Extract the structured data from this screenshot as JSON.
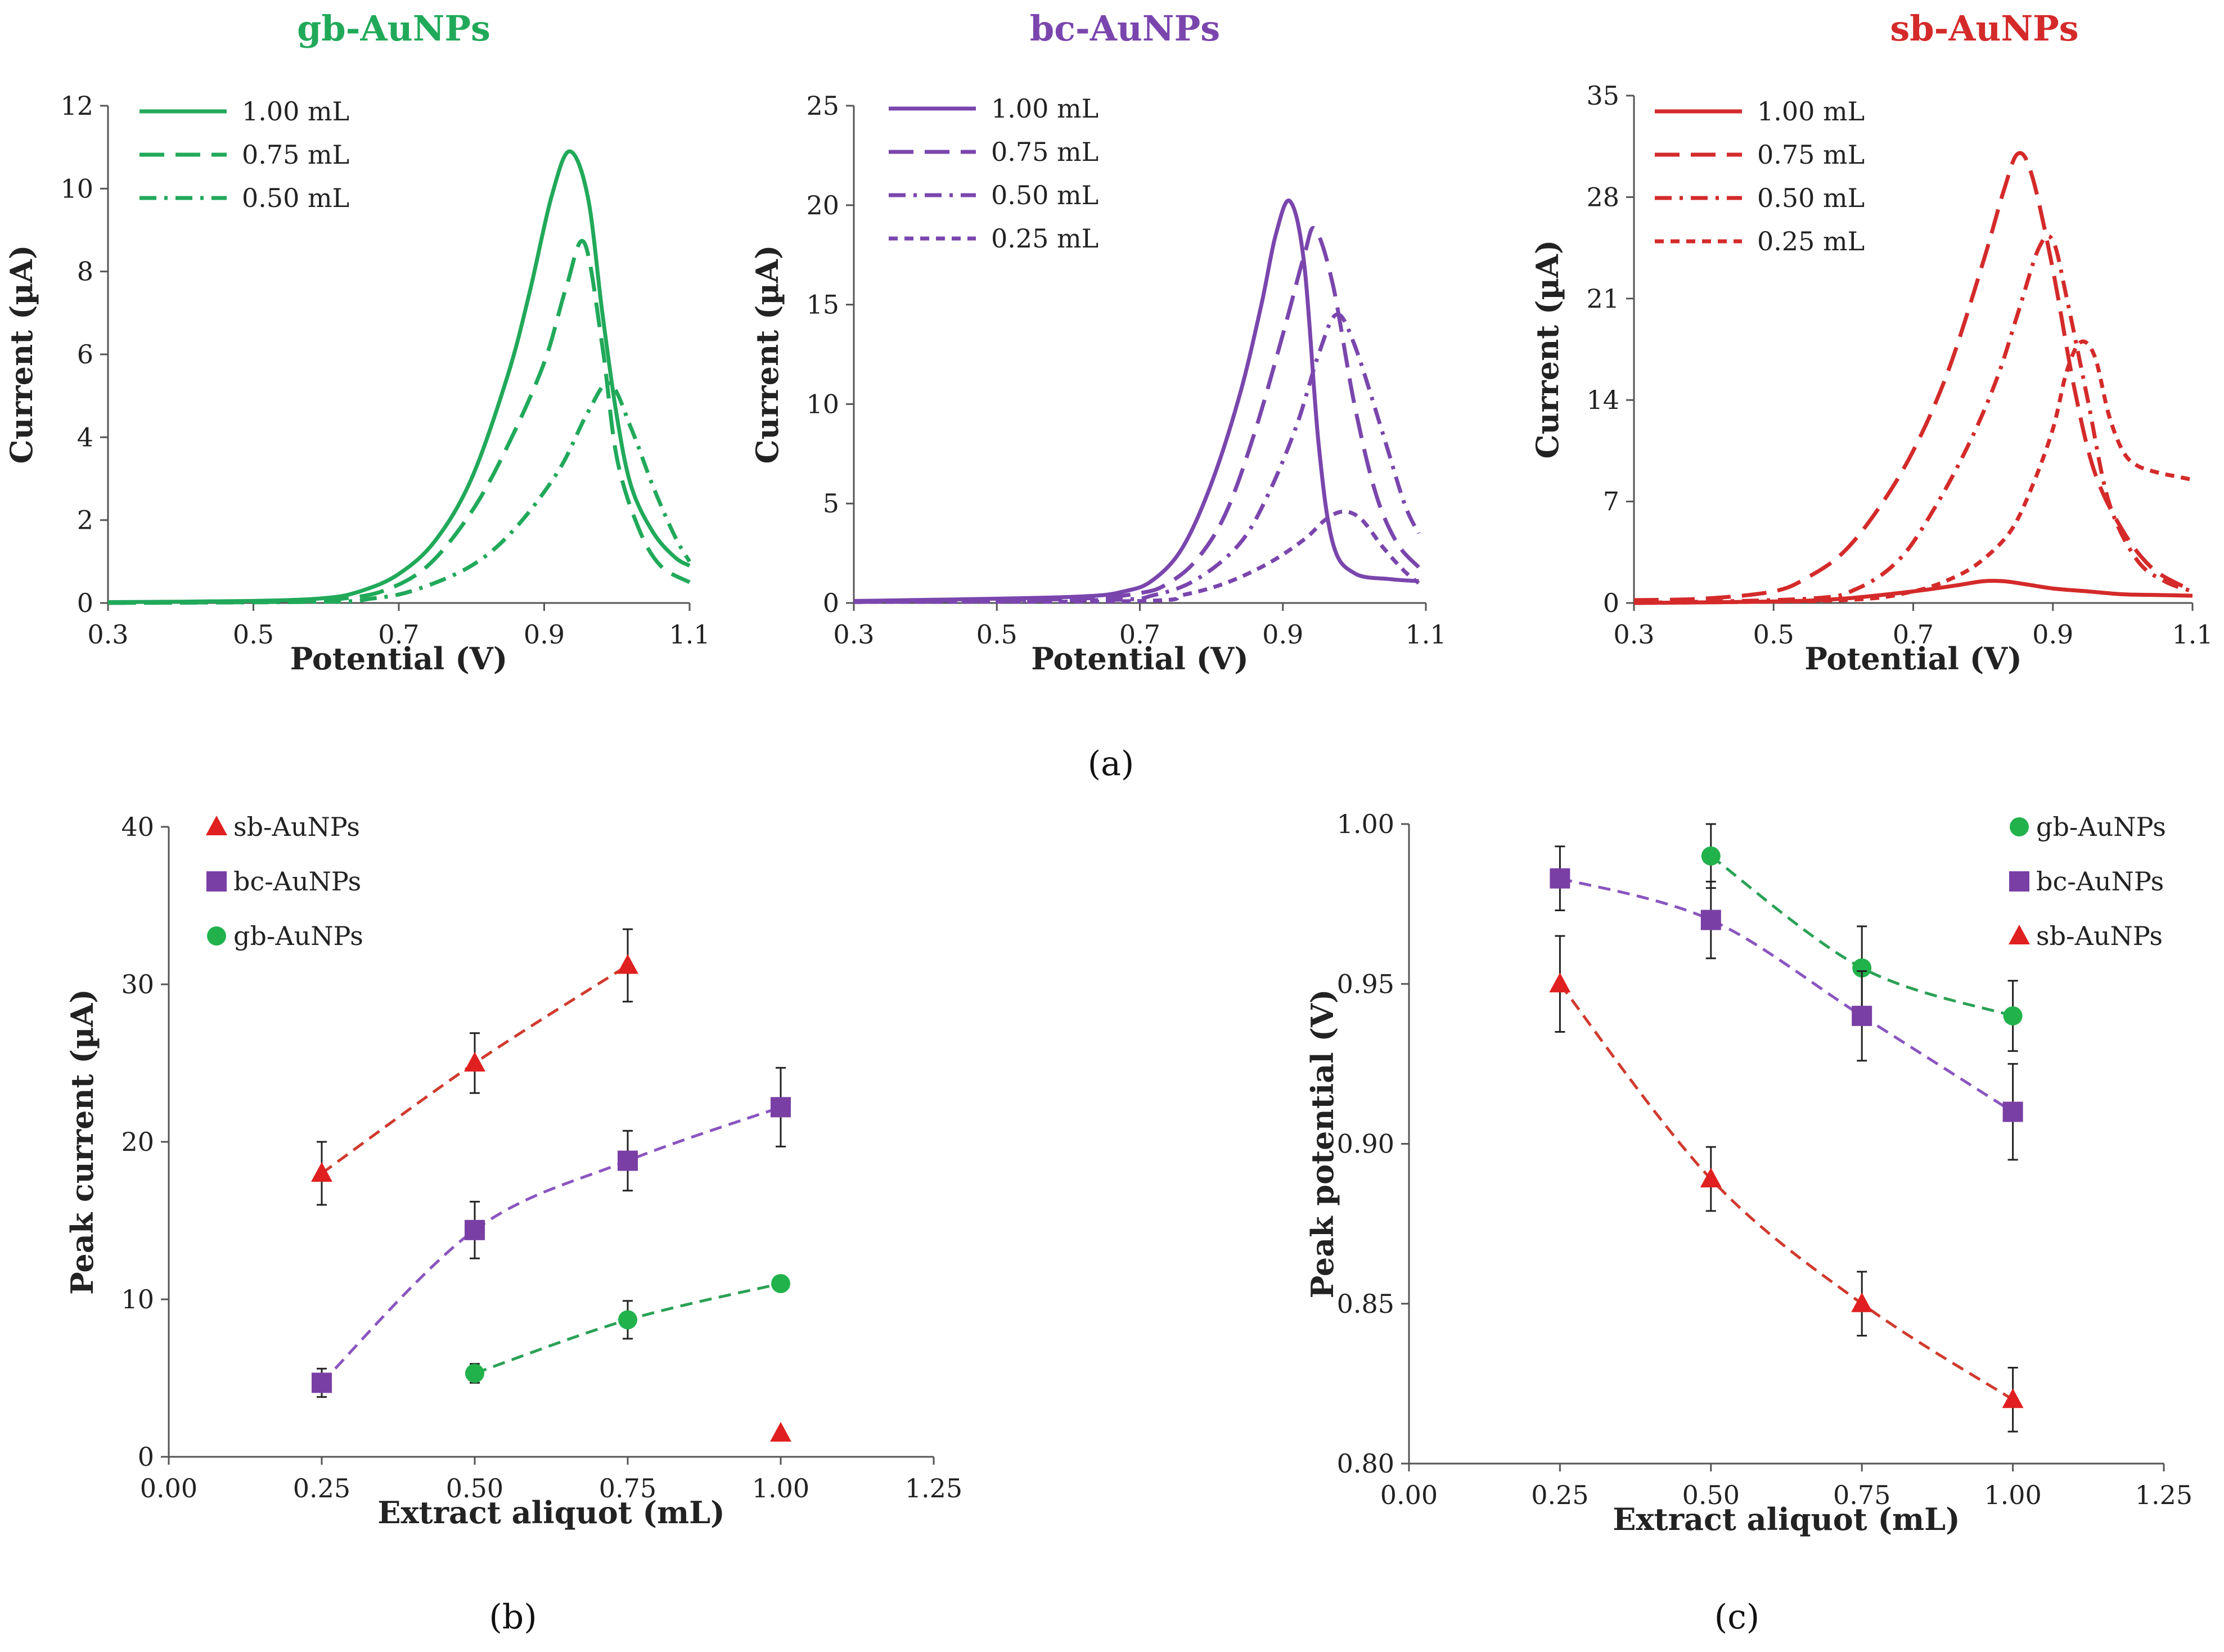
{
  "captions": {
    "a": "(a)",
    "b": "(b)",
    "c": "(c)"
  },
  "chart_data": [
    {
      "id": "a1",
      "type": "line",
      "title": "gb-AuNPs",
      "color": "#21a95a",
      "xlabel": "Potential (V)",
      "ylabel": "Current (µA)",
      "xlim": [
        0.3,
        1.1
      ],
      "ylim": [
        0,
        12
      ],
      "xticks": [
        "0.3",
        "0.5",
        "0.7",
        "0.9",
        "1.1"
      ],
      "yticks": [
        "0",
        "2",
        "4",
        "6",
        "8",
        "10",
        "12"
      ],
      "legend_position": "top-left",
      "series": [
        {
          "name": "1.00 mL",
          "dash": "solid",
          "x": [
            0.3,
            0.5,
            0.6,
            0.65,
            0.7,
            0.75,
            0.8,
            0.85,
            0.88,
            0.91,
            0.935,
            0.96,
            0.98,
            1.0,
            1.02,
            1.05,
            1.08,
            1.1
          ],
          "y": [
            0.02,
            0.05,
            0.12,
            0.3,
            0.7,
            1.5,
            3.0,
            5.5,
            7.5,
            9.8,
            10.9,
            9.8,
            7.0,
            4.5,
            2.8,
            1.7,
            1.1,
            0.9
          ]
        },
        {
          "name": "0.75 mL",
          "dash": "long",
          "x": [
            0.3,
            0.55,
            0.62,
            0.68,
            0.74,
            0.8,
            0.85,
            0.9,
            0.93,
            0.955,
            0.98,
            1.0,
            1.03,
            1.06,
            1.1
          ],
          "y": [
            0,
            0.03,
            0.1,
            0.3,
            0.9,
            2.2,
            3.8,
            5.8,
            7.6,
            8.7,
            6.2,
            3.5,
            1.8,
            0.9,
            0.5
          ]
        },
        {
          "name": "0.50 mL",
          "dash": "dashdot",
          "x": [
            0.3,
            0.6,
            0.66,
            0.72,
            0.8,
            0.86,
            0.92,
            0.96,
            0.99,
            1.02,
            1.05,
            1.08,
            1.1
          ],
          "y": [
            0,
            0.03,
            0.1,
            0.3,
            0.9,
            1.8,
            3.2,
            4.6,
            5.3,
            4.2,
            2.8,
            1.6,
            1.0
          ]
        }
      ]
    },
    {
      "id": "a2",
      "type": "line",
      "title": "bc-AuNPs",
      "color": "#7a46ad",
      "xlabel": "Potential (V)",
      "ylabel": "Current (µA)",
      "xlim": [
        0.3,
        1.1
      ],
      "ylim": [
        0,
        25
      ],
      "xticks": [
        "0.3",
        "0.5",
        "0.7",
        "0.9",
        "1.1"
      ],
      "yticks": [
        "0",
        "5",
        "10",
        "15",
        "20",
        "25"
      ],
      "legend_position": "top-left",
      "series": [
        {
          "name": "1.00 mL",
          "dash": "solid",
          "x": [
            0.3,
            0.6,
            0.68,
            0.72,
            0.76,
            0.8,
            0.84,
            0.87,
            0.89,
            0.91,
            0.93,
            0.95,
            0.97,
            1.0,
            1.05,
            1.09
          ],
          "y": [
            0.1,
            0.3,
            0.6,
            1.2,
            2.8,
            6.0,
            10.5,
            15.0,
            18.5,
            20.2,
            17.0,
            8.0,
            3.0,
            1.5,
            1.2,
            1.1
          ]
        },
        {
          "name": "0.75 mL",
          "dash": "long",
          "x": [
            0.3,
            0.6,
            0.7,
            0.74,
            0.78,
            0.82,
            0.86,
            0.9,
            0.93,
            0.945,
            0.97,
            1.0,
            1.03,
            1.06,
            1.09
          ],
          "y": [
            0.1,
            0.2,
            0.5,
            1.0,
            2.2,
            4.5,
            8.5,
            13.5,
            17.5,
            18.8,
            16.0,
            10.0,
            5.5,
            3.0,
            1.8
          ]
        },
        {
          "name": "0.50 mL",
          "dash": "dashdot",
          "x": [
            0.3,
            0.65,
            0.72,
            0.78,
            0.84,
            0.88,
            0.92,
            0.95,
            0.975,
            1.0,
            1.04,
            1.07,
            1.09
          ],
          "y": [
            0.05,
            0.15,
            0.4,
            1.2,
            3.0,
            5.5,
            9.0,
            12.5,
            14.5,
            13.0,
            8.5,
            5.0,
            3.5
          ]
        },
        {
          "name": "0.25 mL",
          "dash": "short",
          "x": [
            0.3,
            0.7,
            0.76,
            0.82,
            0.88,
            0.93,
            0.96,
            0.985,
            1.01,
            1.04,
            1.07,
            1.09
          ],
          "y": [
            0.05,
            0.1,
            0.4,
            1.0,
            2.0,
            3.2,
            4.2,
            4.6,
            4.2,
            2.8,
            1.6,
            1.0
          ]
        }
      ]
    },
    {
      "id": "a3",
      "type": "line",
      "title": "sb-AuNPs",
      "color": "#d42a2a",
      "xlabel": "Potential (V)",
      "ylabel": "Current (µA)",
      "xlim": [
        0.3,
        1.1
      ],
      "ylim": [
        0,
        35
      ],
      "xticks": [
        "0.3",
        "0.5",
        "0.7",
        "0.9",
        "1.1"
      ],
      "yticks": [
        "0",
        "7",
        "14",
        "21",
        "28",
        "35"
      ],
      "legend_position": "top-left",
      "series": [
        {
          "name": "1.00 mL",
          "dash": "solid",
          "x": [
            0.3,
            0.5,
            0.6,
            0.7,
            0.76,
            0.8,
            0.83,
            0.86,
            0.9,
            0.95,
            1.0,
            1.05,
            1.1
          ],
          "y": [
            0,
            0.1,
            0.3,
            0.8,
            1.2,
            1.5,
            1.5,
            1.3,
            1.0,
            0.8,
            0.6,
            0.55,
            0.5
          ]
        },
        {
          "name": "0.75 mL",
          "dash": "long",
          "x": [
            0.3,
            0.4,
            0.5,
            0.55,
            0.6,
            0.65,
            0.7,
            0.75,
            0.8,
            0.83,
            0.85,
            0.87,
            0.9,
            0.93,
            0.96,
            1.0,
            1.04,
            1.08,
            1.1
          ],
          "y": [
            0.2,
            0.3,
            0.8,
            1.8,
            3.5,
            6.5,
            10.5,
            16.0,
            23.5,
            28.5,
            31.0,
            29.5,
            23.0,
            15.0,
            9.0,
            5.0,
            2.5,
            1.3,
            1.0
          ]
        },
        {
          "name": "0.50 mL",
          "dash": "dashdot",
          "x": [
            0.3,
            0.55,
            0.62,
            0.68,
            0.73,
            0.78,
            0.82,
            0.85,
            0.88,
            0.9,
            0.92,
            0.95,
            0.98,
            1.02,
            1.06,
            1.1
          ],
          "y": [
            0,
            0.3,
            1.0,
            3.0,
            6.5,
            11.0,
            15.5,
            20.0,
            24.5,
            25.0,
            21.0,
            14.0,
            7.0,
            3.0,
            1.5,
            0.8
          ]
        },
        {
          "name": "0.25 mL",
          "dash": "short",
          "x": [
            0.3,
            0.6,
            0.7,
            0.76,
            0.8,
            0.84,
            0.87,
            0.9,
            0.92,
            0.94,
            0.96,
            0.98,
            1.0,
            1.02,
            1.05,
            1.08,
            1.1
          ],
          "y": [
            0,
            0.2,
            0.8,
            1.8,
            3.0,
            5.0,
            8.0,
            12.0,
            16.0,
            18.0,
            17.0,
            13.0,
            10.5,
            9.5,
            9.0,
            8.7,
            8.5
          ]
        }
      ]
    },
    {
      "id": "b",
      "type": "scatter",
      "title": "",
      "xlabel": "Extract aliquot (mL)",
      "ylabel": "Peak current (µA)",
      "xlim": [
        0,
        1.25
      ],
      "ylim": [
        0,
        40
      ],
      "xticks": [
        "0.00",
        "0.25",
        "0.50",
        "0.75",
        "1.00",
        "1.25"
      ],
      "yticks": [
        "0",
        "10",
        "20",
        "30",
        "40"
      ],
      "legend_position": "top-left",
      "series": [
        {
          "name": "sb-AuNPs",
          "marker": "triangle",
          "color": "#e02020",
          "line": "#d03a2e",
          "x": [
            0.25,
            0.5,
            0.75,
            1.0
          ],
          "y": [
            18.0,
            25.0,
            31.2,
            1.5
          ],
          "err": [
            2.0,
            1.9,
            2.3,
            0
          ],
          "fit_count": 3
        },
        {
          "name": "bc-AuNPs",
          "marker": "square",
          "color": "#7a3fa5",
          "line": "#8a55bf",
          "x": [
            0.25,
            0.5,
            0.75,
            1.0
          ],
          "y": [
            4.7,
            14.4,
            18.8,
            22.2
          ],
          "err": [
            0.9,
            1.8,
            1.9,
            2.5
          ],
          "fit_count": 4
        },
        {
          "name": "gb-AuNPs",
          "marker": "circle",
          "color": "#22b24c",
          "line": "#2aa155",
          "x": [
            0.5,
            0.75,
            1.0
          ],
          "y": [
            5.3,
            8.7,
            11.0
          ],
          "err": [
            0.6,
            1.2,
            0
          ],
          "fit_count": 3
        }
      ]
    },
    {
      "id": "c",
      "type": "scatter",
      "title": "",
      "xlabel": "Extract aliquot (mL)",
      "ylabel": "Peak potential (V)",
      "xlim": [
        0,
        1.25
      ],
      "ylim": [
        0.8,
        1.0
      ],
      "xticks": [
        "0.00",
        "0.25",
        "0.50",
        "0.75",
        "1.00",
        "1.25"
      ],
      "yticks": [
        "0.80",
        "0.85",
        "0.90",
        "0.95",
        "1.00"
      ],
      "legend_position": "top-right",
      "series": [
        {
          "name": "gb-AuNPs",
          "marker": "circle",
          "color": "#22b24c",
          "line": "#2aa155",
          "x": [
            0.5,
            0.75,
            1.0
          ],
          "y": [
            0.99,
            0.955,
            0.94
          ],
          "err": [
            0.01,
            0.013,
            0.011
          ],
          "fit_count": 3
        },
        {
          "name": "bc-AuNPs",
          "marker": "square",
          "color": "#7a3fa5",
          "line": "#8a55bf",
          "x": [
            0.25,
            0.5,
            0.75,
            1.0
          ],
          "y": [
            0.983,
            0.97,
            0.94,
            0.91
          ],
          "err": [
            0.01,
            0.012,
            0.014,
            0.015
          ],
          "fit_count": 4
        },
        {
          "name": "sb-AuNPs",
          "marker": "triangle",
          "color": "#e02020",
          "line": "#d03a2e",
          "x": [
            0.25,
            0.5,
            0.75,
            1.0
          ],
          "y": [
            0.95,
            0.889,
            0.85,
            0.82
          ],
          "err": [
            0.015,
            0.01,
            0.01,
            0.01
          ],
          "fit_count": 4
        }
      ]
    }
  ]
}
